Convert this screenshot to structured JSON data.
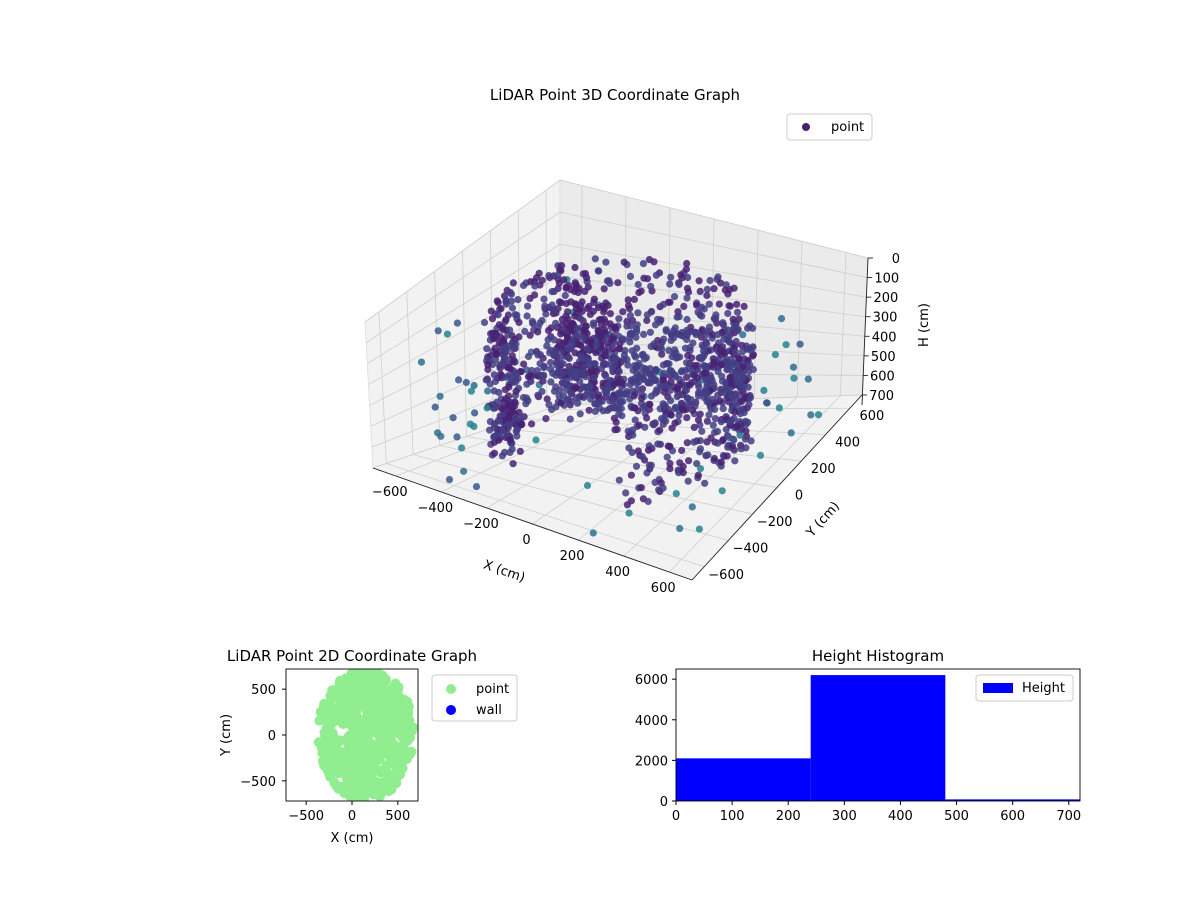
{
  "chart_data": [
    {
      "type": "scatter",
      "projection": "3d",
      "title": "LiDAR Point 3D Coordinate Graph",
      "xlabel": "X (cm)",
      "ylabel": "Y (cm)",
      "zlabel": "H (cm)",
      "xlim": [
        -700,
        700
      ],
      "ylim": [
        -700,
        700
      ],
      "zlim": [
        0,
        700
      ],
      "z_inverted": true,
      "xticks": [
        "−600",
        "−400",
        "−200",
        "0",
        "200",
        "400",
        "600"
      ],
      "yticks": [
        "−600",
        "−400",
        "−200",
        "0",
        "200",
        "400",
        "600"
      ],
      "zticks": [
        "0",
        "100",
        "200",
        "300",
        "400",
        "500",
        "600",
        "700"
      ],
      "grid": true,
      "colormap": "viridis",
      "legend": {
        "position": "upper-right",
        "entries": [
          {
            "label": "point",
            "color": "#482173"
          }
        ]
      },
      "description_series": [
        {
          "name": "point",
          "shape": "curved wall arc of points, radius ~450-550, heights 0-700, plus scattered sparse points"
        }
      ]
    },
    {
      "type": "scatter",
      "title": "LiDAR Point 2D Coordinate Graph",
      "xlabel": "X (cm)",
      "ylabel": "Y (cm)",
      "xlim": [
        -720,
        720
      ],
      "ylim": [
        -720,
        720
      ],
      "xticks": [
        "−500",
        "0",
        "500"
      ],
      "yticks": [
        "500",
        "0",
        "−500"
      ],
      "legend": {
        "position": "outside-right",
        "entries": [
          {
            "label": "point",
            "color": "#90ee90"
          },
          {
            "label": "wall",
            "color": "#0000ff"
          }
        ]
      }
    },
    {
      "type": "bar",
      "title": "Height Histogram",
      "bins": [
        {
          "x0": 0,
          "x1": 240,
          "count": 2100
        },
        {
          "x0": 240,
          "x1": 480,
          "count": 6200
        },
        {
          "x0": 480,
          "x1": 720,
          "count": 80
        }
      ],
      "xlim": [
        0,
        720
      ],
      "ylim": [
        0,
        6500
      ],
      "xticks": [
        "0",
        "100",
        "200",
        "300",
        "400",
        "500",
        "600",
        "700"
      ],
      "yticks": [
        "0",
        "2000",
        "4000",
        "6000"
      ],
      "color": "#0000ff",
      "legend": {
        "position": "upper-right",
        "entries": [
          {
            "label": "Height",
            "color": "#0000ff"
          }
        ]
      }
    }
  ]
}
